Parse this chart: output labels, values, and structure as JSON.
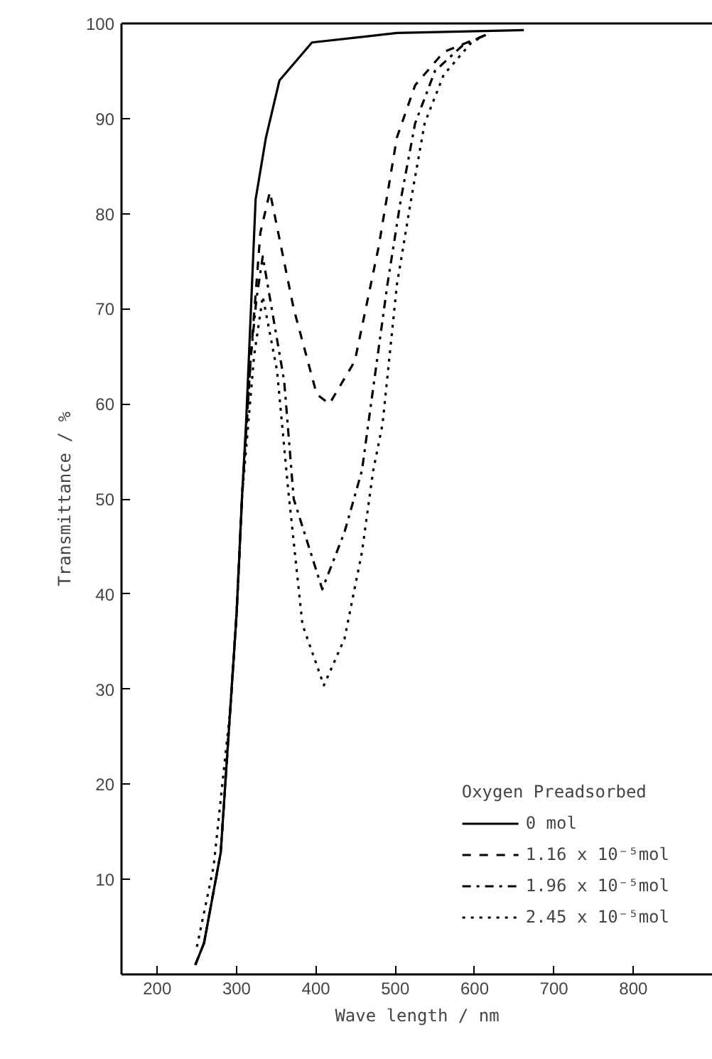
{
  "chart_data": {
    "type": "line",
    "xlabel": "Wave length / nm",
    "ylabel": "Transmittance / %",
    "legend_title": "Oxygen Preadsorbed",
    "xlim": [
      155,
      900
    ],
    "ylim": [
      0,
      100
    ],
    "xticks": [
      200,
      300,
      400,
      500,
      600,
      700,
      800
    ],
    "yticks": [
      {
        "value": 0,
        "label": null
      },
      10,
      20,
      30,
      40,
      50,
      60,
      70,
      80,
      90,
      100
    ],
    "grid": false,
    "legend": "bottom right",
    "marker": "none",
    "series": [
      {
        "name": "0 mol",
        "color": "#000000",
        "line_style": "solid",
        "x": [
          248,
          259,
          280,
          292,
          300,
          307,
          312,
          324,
          337,
          354,
          395,
          502,
          662
        ],
        "values": [
          1,
          3.3,
          12.8,
          27.8,
          37.9,
          50.4,
          58,
          81.5,
          88,
          94,
          98,
          99,
          99.3
        ]
      },
      {
        "name": "1.16 x 10⁻⁵mol",
        "color": "#000000",
        "line_style": "dashed",
        "x": [
          248,
          259,
          280,
          292,
          300,
          307,
          318,
          330,
          342,
          372,
          401,
          417,
          449,
          479,
          502,
          525,
          561,
          614
        ],
        "values": [
          1,
          3.3,
          12.8,
          27.8,
          37.9,
          50.4,
          65,
          78,
          82.3,
          70,
          61,
          60,
          64.5,
          76.5,
          88,
          93.5,
          97,
          98.8
        ]
      },
      {
        "name": "1.96 x 10⁻⁵mol",
        "color": "#000000",
        "line_style": "dashdot",
        "x": [
          248,
          259,
          280,
          292,
          300,
          307,
          318,
          325,
          333,
          360,
          372,
          408,
          436,
          458,
          466,
          490,
          507,
          525,
          550,
          585,
          614
        ],
        "values": [
          1,
          3.3,
          12.8,
          27.8,
          37.9,
          50.4,
          65,
          71,
          75.5,
          62.4,
          50,
          40.5,
          46.5,
          53,
          57.9,
          72.5,
          81.5,
          89.5,
          95,
          97.7,
          98.8
        ]
      },
      {
        "name": "2.45 x 10⁻⁵mol",
        "color": "#000000",
        "line_style": "dotted",
        "x": [
          250,
          271,
          292,
          300,
          307,
          322,
          333,
          351,
          365,
          383,
          410,
          436,
          458,
          472,
          484,
          502,
          520,
          537,
          561,
          596,
          614
        ],
        "values": [
          2.9,
          11.3,
          27.8,
          37.9,
          50.4,
          65,
          71.3,
          63.5,
          51,
          36.8,
          30.4,
          35.3,
          44.4,
          52.9,
          57.9,
          72.5,
          81.5,
          89.5,
          94.6,
          98,
          98.8
        ]
      }
    ]
  }
}
